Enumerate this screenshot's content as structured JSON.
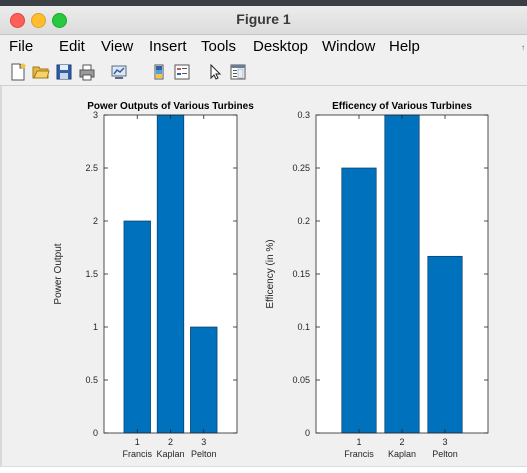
{
  "window": {
    "title": "Figure 1"
  },
  "menu": [
    "File",
    "Edit",
    "View",
    "Insert",
    "Tools",
    "Desktop",
    "Window",
    "Help"
  ],
  "menu_extra": "↑",
  "toolbar": [
    {
      "name": "new-figure-icon"
    },
    {
      "name": "open-file-icon"
    },
    {
      "name": "save-icon"
    },
    {
      "name": "print-icon"
    },
    {
      "name": "link-plot-icon"
    },
    {
      "name": "colorbar-icon"
    },
    {
      "name": "legend-icon"
    },
    {
      "name": "edit-plot-icon"
    },
    {
      "name": "property-inspector-icon"
    }
  ],
  "colors": {
    "bar": "#0072bd",
    "bar_edge": "#0b3a66"
  },
  "chart_data": [
    {
      "type": "bar",
      "title": "Power Outputs of Various Turbines",
      "ylabel": "Power Output",
      "xlabel": "",
      "x_ticks": [
        "1",
        "2",
        "3"
      ],
      "categories": [
        "Francis",
        "Kaplan",
        "Pelton"
      ],
      "values": [
        2,
        3,
        1
      ],
      "ylim": [
        0,
        3
      ],
      "yticks": [
        "0",
        "0.5",
        "1",
        "1.5",
        "2",
        "2.5",
        "3"
      ],
      "grid": false
    },
    {
      "type": "bar",
      "title": "Efficency of Various Turbines",
      "ylabel": "Efficency (in %)",
      "xlabel": "",
      "x_ticks": [
        "1",
        "2",
        "3"
      ],
      "categories": [
        "Francis",
        "Kaplan",
        "Pelton"
      ],
      "values": [
        0.25,
        0.3,
        0.1667
      ],
      "ylim": [
        0,
        0.3
      ],
      "yticks": [
        "0",
        "0.05",
        "0.1",
        "0.15",
        "0.2",
        "0.25",
        "0.3"
      ],
      "grid": false
    }
  ]
}
